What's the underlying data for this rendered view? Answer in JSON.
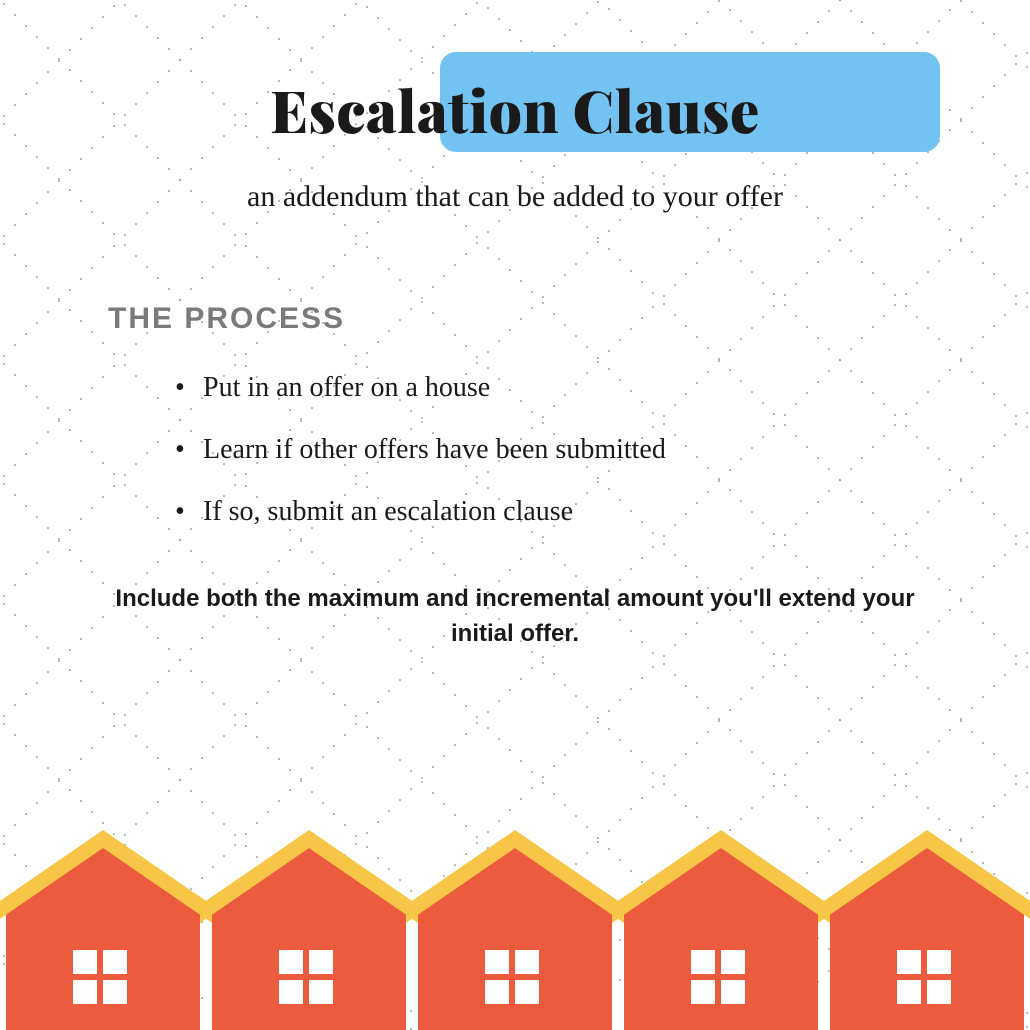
{
  "colors": {
    "background": "#ffffff",
    "dot": "#6b6b6b",
    "highlight": "#73c3f2",
    "title_text": "#1a1a1a",
    "subtitle_text": "#1a1a1a",
    "section_label": "#7a7a7a",
    "bullet_text": "#1a1a1a",
    "note_text": "#1a1a1a",
    "house_body": "#ec5b3e",
    "house_roof": "#f7c646",
    "house_window": "#ffffff"
  },
  "title": "Escalation Clause",
  "subtitle": "an addendum that can be added to your offer",
  "section_label": "THE PROCESS",
  "bullets": [
    "Put in an offer on a house",
    "Learn if other offers have been submitted",
    "If so, submit an escalation clause"
  ],
  "note": "Include both the maximum and incremental amount you'll extend your initial offer.",
  "houses_count": 5,
  "diamond": {
    "spacing": 120,
    "dot_spacing": 11,
    "dot_radius": 0.8
  }
}
